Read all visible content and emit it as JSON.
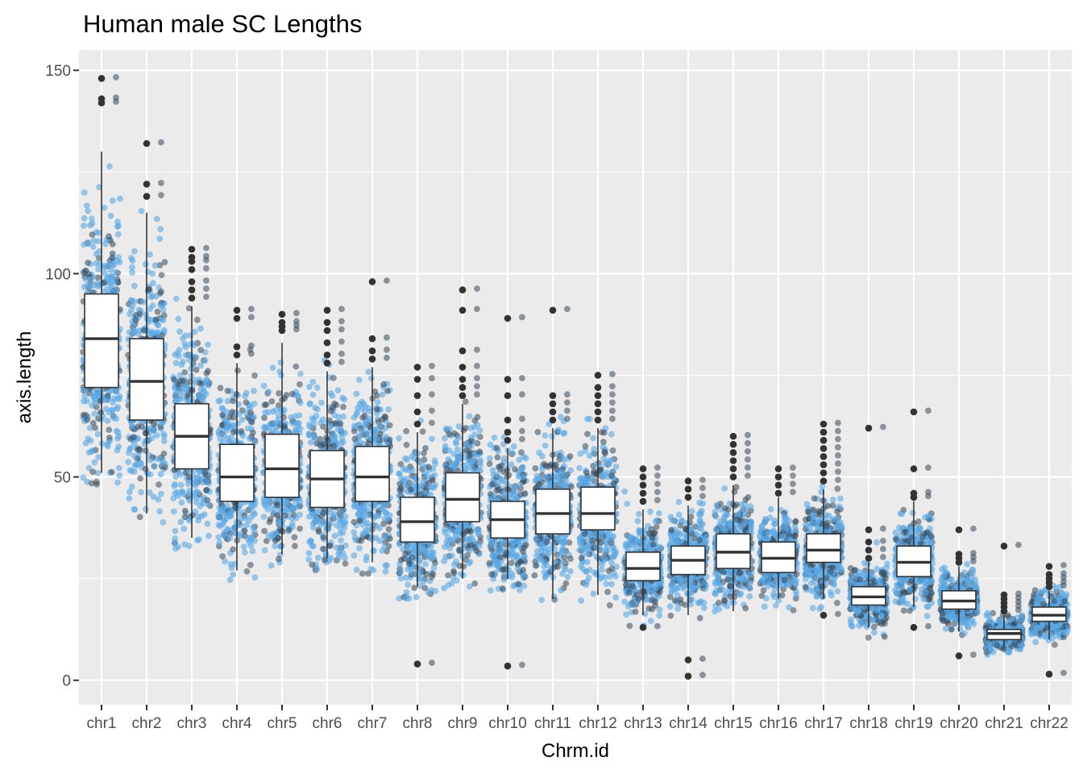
{
  "chart_data": {
    "type": "box",
    "title": "Human male SC Lengths",
    "xlabel": "Chrm.id",
    "ylabel": "axis.length",
    "ylim": [
      -6,
      155
    ],
    "yticks": [
      0,
      50,
      100,
      150
    ],
    "grid": true,
    "legend": "none",
    "categories": [
      "chr1",
      "chr2",
      "chr3",
      "chr4",
      "chr5",
      "chr6",
      "chr7",
      "chr8",
      "chr9",
      "chr10",
      "chr11",
      "chr12",
      "chr13",
      "chr14",
      "chr15",
      "chr16",
      "chr17",
      "chr18",
      "chr19",
      "chr20",
      "chr21",
      "chr22"
    ],
    "boxes": [
      {
        "min": 51,
        "q1": 72,
        "median": 84,
        "q3": 95,
        "max": 130,
        "spread": 16,
        "outliers": [
          142,
          143,
          148
        ]
      },
      {
        "min": 41,
        "q1": 64,
        "median": 73.5,
        "q3": 84,
        "max": 115,
        "spread": 15,
        "outliers": [
          119,
          122,
          132
        ]
      },
      {
        "min": 35,
        "q1": 52,
        "median": 60,
        "q3": 68,
        "max": 92,
        "spread": 12,
        "outliers": [
          94,
          96,
          98,
          101,
          103,
          104,
          106
        ]
      },
      {
        "min": 27,
        "q1": 44,
        "median": 50,
        "q3": 58,
        "max": 78,
        "spread": 10,
        "outliers": [
          80,
          82,
          89,
          91
        ]
      },
      {
        "min": 31,
        "q1": 45,
        "median": 52,
        "q3": 60.5,
        "max": 83,
        "spread": 10,
        "outliers": [
          86,
          87,
          88,
          90
        ]
      },
      {
        "min": 30,
        "q1": 42.5,
        "median": 49.5,
        "q3": 56.5,
        "max": 76,
        "spread": 10,
        "outliers": [
          78,
          80,
          83,
          86,
          88,
          91
        ]
      },
      {
        "min": 29,
        "q1": 44,
        "median": 50,
        "q3": 57.5,
        "max": 77,
        "spread": 10,
        "outliers": [
          79,
          81,
          84,
          98
        ]
      },
      {
        "min": 23,
        "q1": 34,
        "median": 39,
        "q3": 45,
        "max": 61,
        "spread": 8,
        "outliers": [
          63,
          66,
          70,
          74,
          77,
          4
        ]
      },
      {
        "min": 25,
        "q1": 39,
        "median": 44.5,
        "q3": 51,
        "max": 68,
        "spread": 9,
        "outliers": [
          70,
          72,
          74,
          77,
          81,
          91,
          96
        ]
      },
      {
        "min": 25,
        "q1": 35,
        "median": 39.5,
        "q3": 44,
        "max": 57,
        "spread": 8,
        "outliers": [
          59,
          61,
          64,
          70,
          74,
          89,
          3.5
        ]
      },
      {
        "min": 20,
        "q1": 36,
        "median": 41,
        "q3": 47,
        "max": 62,
        "spread": 8,
        "outliers": [
          64,
          66,
          68,
          70,
          91
        ]
      },
      {
        "min": 21,
        "q1": 37,
        "median": 41,
        "q3": 47.5,
        "max": 62,
        "spread": 8,
        "outliers": [
          64,
          66,
          68,
          70,
          72,
          75
        ]
      },
      {
        "min": 16,
        "q1": 24.5,
        "median": 27.5,
        "q3": 31.5,
        "max": 42,
        "spread": 5,
        "outliers": [
          44,
          46,
          48,
          50,
          52,
          13
        ]
      },
      {
        "min": 16,
        "q1": 26,
        "median": 29.5,
        "q3": 33,
        "max": 43,
        "spread": 5,
        "outliers": [
          45,
          47,
          49,
          5,
          1
        ]
      },
      {
        "min": 17,
        "q1": 27.5,
        "median": 31.5,
        "q3": 36,
        "max": 48,
        "spread": 6,
        "outliers": [
          50,
          52,
          54,
          56,
          58,
          60
        ]
      },
      {
        "min": 20,
        "q1": 26.5,
        "median": 30,
        "q3": 34,
        "max": 45,
        "spread": 5,
        "outliers": [
          46,
          48,
          50,
          52
        ]
      },
      {
        "min": 20,
        "q1": 29,
        "median": 32,
        "q3": 36,
        "max": 47,
        "spread": 6,
        "outliers": [
          49,
          51,
          53,
          55,
          57,
          59,
          61,
          63,
          16
        ]
      },
      {
        "min": 13,
        "q1": 18.5,
        "median": 20.5,
        "q3": 23,
        "max": 29,
        "spread": 3.5,
        "outliers": [
          30,
          32,
          34,
          37,
          62
        ]
      },
      {
        "min": 18,
        "q1": 25.5,
        "median": 29,
        "q3": 33,
        "max": 44,
        "spread": 5,
        "outliers": [
          45,
          46,
          52,
          66,
          13
        ]
      },
      {
        "min": 12,
        "q1": 17.5,
        "median": 19.5,
        "q3": 22,
        "max": 28,
        "spread": 3,
        "outliers": [
          29,
          30,
          31,
          37,
          6
        ]
      },
      {
        "min": 8,
        "q1": 10,
        "median": 11.5,
        "q3": 12.5,
        "max": 16,
        "spread": 1.8,
        "outliers": [
          17,
          18,
          19,
          20,
          21,
          33
        ]
      },
      {
        "min": 10,
        "q1": 14.5,
        "median": 16,
        "q3": 18,
        "max": 22,
        "spread": 2.5,
        "outliers": [
          23,
          24,
          25,
          26,
          28,
          1.5
        ]
      }
    ]
  },
  "colors": {
    "panel": "#ebebeb",
    "grid_major": "#ffffff",
    "point_light": "#5aa9e6",
    "point_dark": "#37495a",
    "outlier": "#333333",
    "box_fill": "#ffffff",
    "box_stroke": "#333333"
  }
}
